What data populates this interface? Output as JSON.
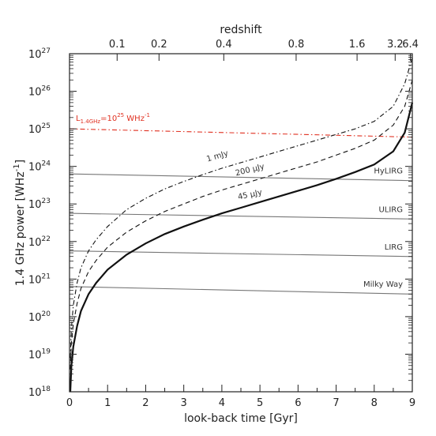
{
  "chart_data": {
    "type": "line",
    "xlabel": "look-back time [Gyr]",
    "ylabel": "1.4 GHz power [WHz",
    "ylabel_exp": "-1",
    "ylabel_close": "]",
    "top_axis_label": "redshift",
    "xlim": [
      0,
      9
    ],
    "ylim_log10": [
      18,
      27
    ],
    "y_scale": "log",
    "x_ticks": [
      0,
      1,
      2,
      3,
      4,
      5,
      6,
      7,
      8,
      9
    ],
    "y_ticks_exp": [
      18,
      19,
      20,
      21,
      22,
      23,
      24,
      25,
      26,
      27
    ],
    "y_tick_base": "10",
    "top_ticks": [
      {
        "label": "0.1",
        "x": 1.25
      },
      {
        "label": "0.2",
        "x": 2.35
      },
      {
        "label": "0.4",
        "x": 4.05
      },
      {
        "label": "0.8",
        "x": 5.95
      },
      {
        "label": "1.6",
        "x": 7.55
      },
      {
        "label": "3.2",
        "x": 8.55
      },
      {
        "label": "6.4",
        "x": 8.95
      }
    ],
    "series": [
      {
        "name": "1 mJy",
        "style": "dash-dot",
        "x": [
          0.02,
          0.05,
          0.1,
          0.2,
          0.3,
          0.5,
          0.7,
          1.0,
          1.5,
          2.0,
          2.5,
          3.0,
          3.5,
          4.0,
          4.5,
          5.0,
          5.5,
          6.0,
          6.5,
          7.0,
          7.5,
          8.0,
          8.5,
          8.8,
          9.0
        ],
        "y_log10": [
          18.9,
          19.7,
          20.3,
          20.9,
          21.3,
          21.75,
          22.05,
          22.4,
          22.85,
          23.15,
          23.4,
          23.6,
          23.78,
          23.95,
          24.1,
          24.25,
          24.4,
          24.55,
          24.7,
          24.85,
          25.0,
          25.2,
          25.6,
          26.2,
          26.9
        ]
      },
      {
        "name": "200 μJy",
        "style": "dashed",
        "x": [
          0.02,
          0.05,
          0.1,
          0.2,
          0.3,
          0.5,
          0.7,
          1.0,
          1.5,
          2.0,
          2.5,
          3.0,
          3.5,
          4.0,
          4.5,
          5.0,
          5.5,
          6.0,
          6.5,
          7.0,
          7.5,
          8.0,
          8.5,
          8.8,
          9.0
        ],
        "y_log10": [
          18.6,
          19.3,
          19.8,
          20.35,
          20.75,
          21.2,
          21.5,
          21.85,
          22.25,
          22.55,
          22.8,
          23.0,
          23.2,
          23.37,
          23.52,
          23.67,
          23.82,
          23.97,
          24.12,
          24.3,
          24.48,
          24.7,
          25.1,
          25.6,
          26.3
        ]
      },
      {
        "name": "45 μJy",
        "style": "solid-thick",
        "x": [
          0.02,
          0.05,
          0.1,
          0.2,
          0.3,
          0.5,
          0.7,
          1.0,
          1.5,
          2.0,
          2.5,
          3.0,
          3.5,
          4.0,
          4.5,
          5.0,
          5.5,
          6.0,
          6.5,
          7.0,
          7.5,
          8.0,
          8.5,
          8.8,
          9.0
        ],
        "y_log10": [
          18.0,
          18.7,
          19.2,
          19.75,
          20.15,
          20.6,
          20.9,
          21.25,
          21.65,
          21.95,
          22.2,
          22.4,
          22.58,
          22.75,
          22.9,
          23.05,
          23.2,
          23.35,
          23.5,
          23.67,
          23.85,
          24.05,
          24.4,
          24.9,
          25.7
        ]
      }
    ],
    "reference_lines": [
      {
        "label": "HyLIRG",
        "y_log10": 23.8,
        "y_end_log10": 23.62
      },
      {
        "label": "ULIRG",
        "y_log10": 22.75,
        "y_end_log10": 22.6
      },
      {
        "label": "LIRG",
        "y_log10": 21.75,
        "y_end_log10": 21.6
      },
      {
        "label": "Milky Way",
        "y_log10": 20.8,
        "y_end_log10": 20.6
      }
    ],
    "threshold_line": {
      "label_prefix": "L",
      "label_sub": "1.4GHz",
      "label_mid": "=10",
      "label_sup": "25",
      "label_unit": " WHz",
      "label_unit_sup": "-1",
      "y_log10": 25.0,
      "y_end_log10": 24.78,
      "color": "#e03020"
    },
    "colors": {
      "axes": "#222222",
      "curves": "#111111",
      "reference": "#777777",
      "threshold": "#e03020"
    }
  }
}
